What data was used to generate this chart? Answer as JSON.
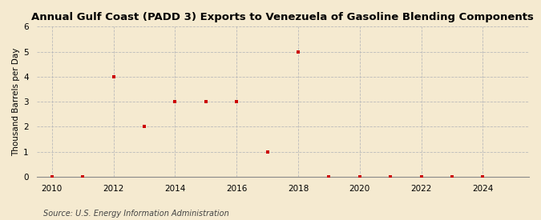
{
  "title": "Annual Gulf Coast (PADD 3) Exports to Venezuela of Gasoline Blending Components",
  "ylabel": "Thousand Barrels per Day",
  "source": "Source: U.S. Energy Information Administration",
  "years": [
    2010,
    2011,
    2012,
    2013,
    2014,
    2015,
    2016,
    2017,
    2018,
    2019,
    2020,
    2021,
    2022,
    2023,
    2024
  ],
  "values": [
    0,
    0,
    4,
    2,
    3,
    3,
    3,
    1,
    5,
    0,
    0,
    0,
    0,
    0,
    0
  ],
  "xlim": [
    2009.5,
    2025.5
  ],
  "ylim": [
    0,
    6
  ],
  "yticks": [
    0,
    1,
    2,
    3,
    4,
    5,
    6
  ],
  "xticks": [
    2010,
    2012,
    2014,
    2016,
    2018,
    2020,
    2022,
    2024
  ],
  "marker_color": "#cc0000",
  "marker": "s",
  "marker_size": 3.5,
  "background_color": "#f5ead0",
  "grid_color": "#bbbbbb",
  "title_fontsize": 9.5,
  "label_fontsize": 7.5,
  "tick_fontsize": 7.5,
  "source_fontsize": 7
}
